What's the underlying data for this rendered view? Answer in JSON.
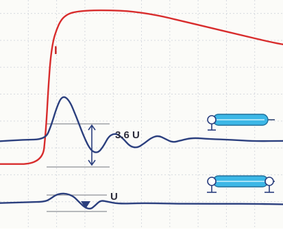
{
  "chart_data": {
    "type": "line",
    "title": "",
    "xlabel": "",
    "ylabel": "",
    "grid": true,
    "xlim": [
      0,
      10
    ],
    "ylim": [
      0,
      8.5
    ],
    "series": [
      {
        "name": "I",
        "color": "#d82c2c",
        "x": [
          0,
          1.5,
          1.62,
          1.7,
          1.78,
          1.88,
          2.0,
          2.15,
          2.35,
          2.6,
          3.0,
          3.5,
          4.5,
          5.5,
          6.5,
          7.5,
          8.5,
          9.5,
          10
        ],
        "y": [
          2.4,
          2.4,
          3.6,
          5.1,
          6.3,
          7.0,
          7.4,
          7.75,
          7.95,
          8.05,
          8.1,
          8.12,
          8.1,
          7.95,
          7.7,
          7.45,
          7.2,
          6.95,
          6.85
        ]
      },
      {
        "name": "",
        "color": "#2b3f7e",
        "x": [
          0,
          0.8,
          1.6,
          1.8,
          2.0,
          2.2,
          2.45,
          2.7,
          2.95,
          3.2,
          3.45,
          3.65,
          3.85,
          4.1,
          4.35,
          4.6,
          4.85,
          5.1,
          5.35,
          5.6,
          5.85,
          6.1,
          6.4,
          6.8,
          7.4,
          8.2,
          9.0,
          10
        ],
        "y": [
          3.25,
          3.3,
          3.32,
          3.8,
          4.5,
          4.95,
          4.78,
          4.15,
          3.45,
          2.9,
          2.8,
          3.05,
          3.45,
          3.55,
          3.35,
          3.05,
          3.0,
          3.17,
          3.38,
          3.46,
          3.33,
          3.2,
          3.28,
          3.38,
          3.33,
          3.3,
          3.25,
          3.26
        ]
      },
      {
        "name": "",
        "color": "#2b3f7e",
        "x": [
          0,
          1.0,
          1.6,
          1.8,
          2.0,
          2.3,
          2.6,
          2.8,
          3.0,
          3.2,
          3.35,
          3.55,
          3.8,
          4.2,
          5.0,
          6.0,
          7.0,
          8.0,
          9.0,
          10
        ],
        "y": [
          0.95,
          0.98,
          1.0,
          1.12,
          1.27,
          1.32,
          1.2,
          0.98,
          0.78,
          0.72,
          0.85,
          1.05,
          1.0,
          0.92,
          0.95,
          0.93,
          0.92,
          0.92,
          0.92,
          0.9
        ]
      }
    ],
    "annotations": [
      {
        "text": "I",
        "color": "#c62323"
      },
      {
        "text": "3.6 U",
        "color": "#2b2b3a"
      },
      {
        "text": "U",
        "color": "#2b2b3a"
      }
    ]
  },
  "icons": {
    "top": "cable-with-open-end-icon",
    "bottom": "cable-with-grounded-ends-icon",
    "fill_color": "#3cb7e6"
  }
}
